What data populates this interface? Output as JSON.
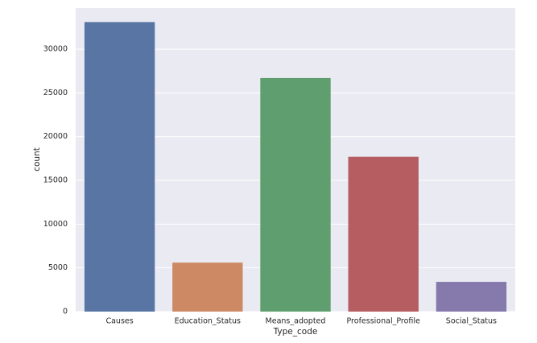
{
  "chart_data": {
    "type": "bar",
    "xlabel": "Type_code",
    "ylabel": "count",
    "categories": [
      "Causes",
      "Education_Status",
      "Means_adopted",
      "Professional_Profile",
      "Social_Status"
    ],
    "values": [
      33100,
      5600,
      26700,
      17700,
      3400
    ],
    "colors": [
      "#5975a4",
      "#cc8963",
      "#5f9e6e",
      "#b55d60",
      "#857aab"
    ],
    "ylim": [
      0,
      34700
    ],
    "yticks": [
      0,
      5000,
      10000,
      15000,
      20000,
      25000,
      30000
    ],
    "grid": true
  }
}
